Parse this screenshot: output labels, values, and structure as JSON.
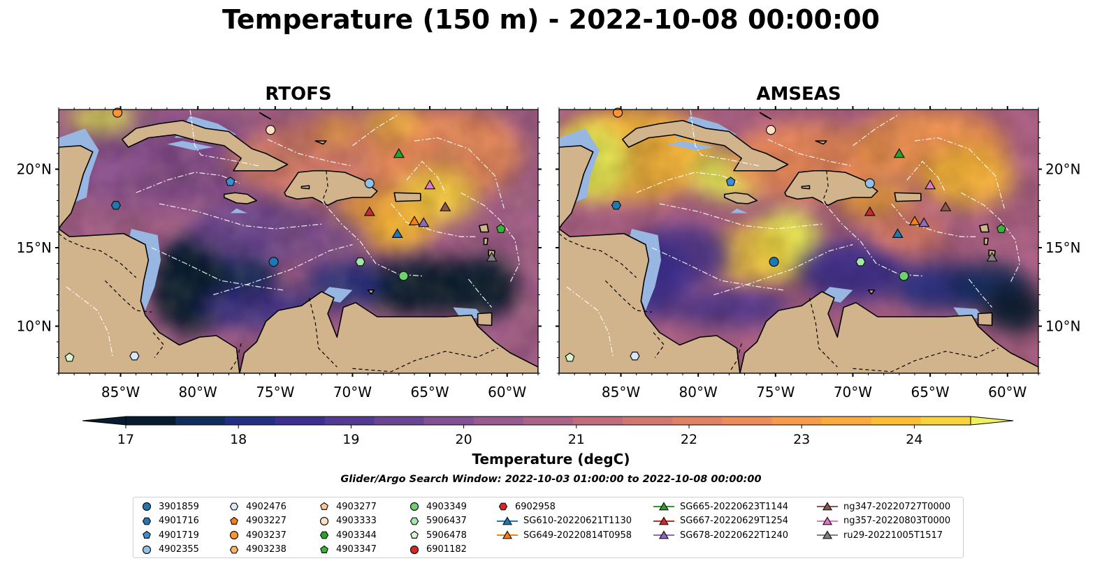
{
  "title": "Temperature (150 m) - 2022-10-08 00:00:00",
  "panels": [
    {
      "title": "RTOFS"
    },
    {
      "title": "AMSEAS"
    }
  ],
  "axes": {
    "lon_ticks": [
      "85°W",
      "80°W",
      "75°W",
      "70°W",
      "65°W",
      "60°W"
    ],
    "lat_ticks": [
      "20°N",
      "15°N",
      "10°N"
    ]
  },
  "colorbar": {
    "label": "Temperature (degC)",
    "min": 17,
    "max": 24.5,
    "step": 0.5,
    "ticks": [
      "17",
      "18",
      "19",
      "20",
      "21",
      "22",
      "23",
      "24"
    ],
    "colors": [
      "#071c2e",
      "#102d5c",
      "#232f83",
      "#3b2f8f",
      "#523a95",
      "#6b4595",
      "#825093",
      "#985a8f",
      "#ad6387",
      "#c16c7d",
      "#d27672",
      "#e08166",
      "#ed8c58",
      "#f69a4b",
      "#fbaa3f",
      "#fdbd36",
      "#f8d33e",
      "#eef15a"
    ]
  },
  "search_window": "Glider/Argo Search Window: 2022-10-03 01:00:00 to 2022-10-08 00:00:00",
  "colors": {
    "land": "#d1b48c",
    "shelf": "#98b6e2",
    "yellow_warm": "#f0ee58"
  },
  "legend": [
    {
      "label": "3901859",
      "marker": "circle",
      "color": "#1f77b4"
    },
    {
      "label": "4901716",
      "marker": "hexagon",
      "color": "#1f77b4"
    },
    {
      "label": "4901719",
      "marker": "pentagon",
      "color": "#3a8fd8"
    },
    {
      "label": "4902355",
      "marker": "circle",
      "color": "#8fc2ea"
    },
    {
      "label": "4902476",
      "marker": "hexagon",
      "color": "#d8e8f8"
    },
    {
      "label": "4903227",
      "marker": "pentagon",
      "color": "#ff7f0e"
    },
    {
      "label": "4903237",
      "marker": "circle",
      "color": "#ff9532"
    },
    {
      "label": "4903238",
      "marker": "hexagon",
      "color": "#ffb266"
    },
    {
      "label": "4903277",
      "marker": "pentagon",
      "color": "#ffc896"
    },
    {
      "label": "4903333",
      "marker": "circle",
      "color": "#ffe0c2"
    },
    {
      "label": "4903344",
      "marker": "hexagon",
      "color": "#2ca02c"
    },
    {
      "label": "4903347",
      "marker": "pentagon",
      "color": "#3cb43c"
    },
    {
      "label": "4903349",
      "marker": "circle",
      "color": "#6fd06f"
    },
    {
      "label": "5906437",
      "marker": "hexagon",
      "color": "#a6e6a6"
    },
    {
      "label": "5906478",
      "marker": "pentagon",
      "color": "#d6f5d0"
    },
    {
      "label": "6901182",
      "marker": "circle",
      "color": "#d62728"
    },
    {
      "label": "6902958",
      "marker": "hexagon",
      "color": "#d62728"
    },
    {
      "label": "SG610-20220621T1130",
      "marker": "triangle-line",
      "color": "#1f77b4"
    },
    {
      "label": "SG649-20220814T0958",
      "marker": "triangle-line",
      "color": "#ff7f0e"
    },
    {
      "label": "SG665-20220623T1144",
      "marker": "triangle-line",
      "color": "#2ca02c"
    },
    {
      "label": "SG667-20220629T1254",
      "marker": "triangle-line",
      "color": "#d62728"
    },
    {
      "label": "SG678-20220622T1240",
      "marker": "triangle-line",
      "color": "#9467bd"
    },
    {
      "label": "ng347-20220727T0000",
      "marker": "triangle-line",
      "color": "#8c564b"
    },
    {
      "label": "ng357-20220803T0000",
      "marker": "triangle-line",
      "color": "#e377c2"
    },
    {
      "label": "ru29-20221005T1517",
      "marker": "triangle-line",
      "color": "#7f7f7f"
    }
  ],
  "observations": [
    {
      "id": "4903237",
      "lon": -85.2,
      "lat": 23.6
    },
    {
      "id": "4903333",
      "lon": -75.3,
      "lat": 22.5
    },
    {
      "id": "SG665-20220623T1144",
      "lon": -67.0,
      "lat": 21.0
    },
    {
      "id": "4901719",
      "lon": -77.9,
      "lat": 19.2
    },
    {
      "id": "4902355",
      "lon": -68.9,
      "lat": 19.1
    },
    {
      "id": "ng357-20220803T0000",
      "lon": -65.0,
      "lat": 19.0
    },
    {
      "id": "4901716",
      "lon": -85.3,
      "lat": 17.7
    },
    {
      "id": "ng347-20220727T0000",
      "lon": -64.0,
      "lat": 17.6
    },
    {
      "id": "SG667-20220629T1254",
      "lon": -68.9,
      "lat": 17.3
    },
    {
      "id": "SG649-20220814T0958",
      "lon": -66.0,
      "lat": 16.7
    },
    {
      "id": "SG678-20220622T1240",
      "lon": -65.4,
      "lat": 16.6
    },
    {
      "id": "4903347",
      "lon": -60.4,
      "lat": 16.2
    },
    {
      "id": "SG610-20220621T1130",
      "lon": -67.1,
      "lat": 15.9
    },
    {
      "id": "ru29-20221005T1517",
      "lon": -61.0,
      "lat": 14.4
    },
    {
      "id": "5906437",
      "lon": -69.5,
      "lat": 14.1
    },
    {
      "id": "3901859",
      "lon": -75.1,
      "lat": 14.1
    },
    {
      "id": "4903349",
      "lon": -66.7,
      "lat": 13.2
    },
    {
      "id": "5906478",
      "lon": -88.3,
      "lat": 8.0
    },
    {
      "id": "4902476",
      "lon": -84.1,
      "lat": 8.1
    }
  ]
}
